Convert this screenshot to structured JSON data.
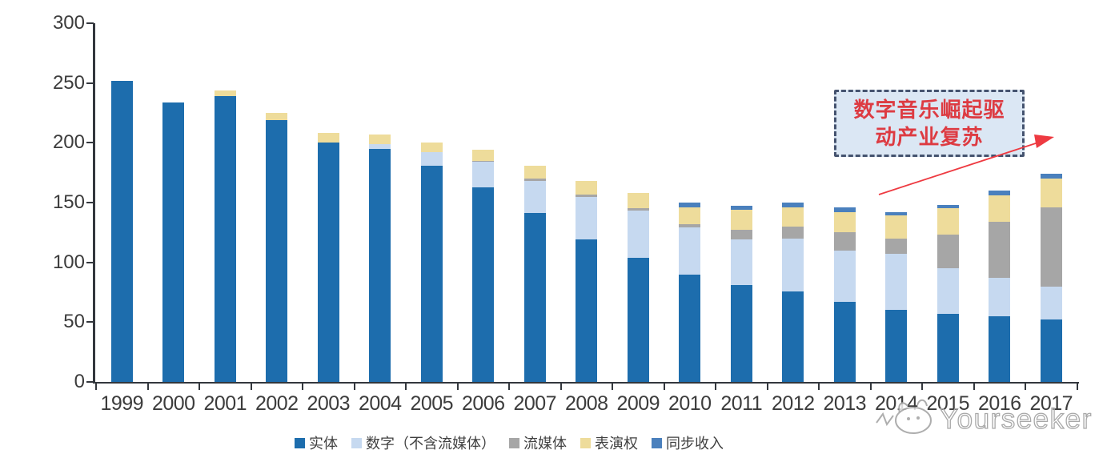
{
  "chart_data": {
    "type": "bar",
    "stacked": true,
    "categories": [
      "1999",
      "2000",
      "2001",
      "2002",
      "2003",
      "2004",
      "2005",
      "2006",
      "2007",
      "2008",
      "2009",
      "2010",
      "2011",
      "2012",
      "2013",
      "2014",
      "2015",
      "2016",
      "2017"
    ],
    "series": [
      {
        "name": "实体",
        "color": "#1d6dad",
        "values": [
          252,
          234,
          239,
          219,
          200,
          195,
          181,
          163,
          141,
          119,
          104,
          90,
          81,
          76,
          67,
          60,
          57,
          55,
          52
        ]
      },
      {
        "name": "数字（不含流媒体）",
        "color": "#c6d9f0",
        "values": [
          0,
          0,
          0,
          0,
          0,
          4,
          11,
          21,
          27,
          36,
          39,
          39,
          38,
          44,
          43,
          47,
          38,
          32,
          28
        ]
      },
      {
        "name": "流媒体",
        "color": "#a6a6a6",
        "values": [
          0,
          0,
          0,
          0,
          0,
          0,
          0,
          1,
          2,
          2,
          2,
          3,
          8,
          10,
          15,
          13,
          28,
          47,
          66
        ]
      },
      {
        "name": "表演权",
        "color": "#eedc9b",
        "values": [
          0,
          0,
          5,
          6,
          8,
          8,
          8,
          9,
          11,
          11,
          13,
          14,
          17,
          16,
          17,
          19,
          22,
          22,
          24
        ]
      },
      {
        "name": "同步收入",
        "color": "#4a80bd",
        "values": [
          0,
          0,
          0,
          0,
          0,
          0,
          0,
          0,
          0,
          0,
          0,
          4,
          3,
          4,
          4,
          3,
          3,
          4,
          4
        ]
      }
    ],
    "totals": [
      252,
      234,
      244,
      225,
      208,
      207,
      200,
      194,
      181,
      168,
      158,
      150,
      147,
      150,
      146,
      142,
      148,
      160,
      174
    ],
    "ylim": [
      0,
      300
    ],
    "y_ticks": [
      0,
      50,
      100,
      150,
      200,
      250,
      300
    ],
    "grid": false,
    "legend_position": "bottom",
    "title": "",
    "xlabel": "",
    "ylabel": ""
  },
  "annotation": {
    "line1": "数字音乐崛起驱",
    "line2": "动产业复苏",
    "text_color": "#dd3b42",
    "box_fill": "#dbe7f4",
    "box_border": "#45536f",
    "arrow_color": "#ee3a41"
  },
  "watermark": {
    "text": "Yourseeker",
    "logo": "cat-face-logo",
    "color": "#a8a8a8"
  },
  "colors": {
    "axis": "#33373d",
    "tick_label": "#3c3c3c",
    "background": "#ffffff"
  }
}
